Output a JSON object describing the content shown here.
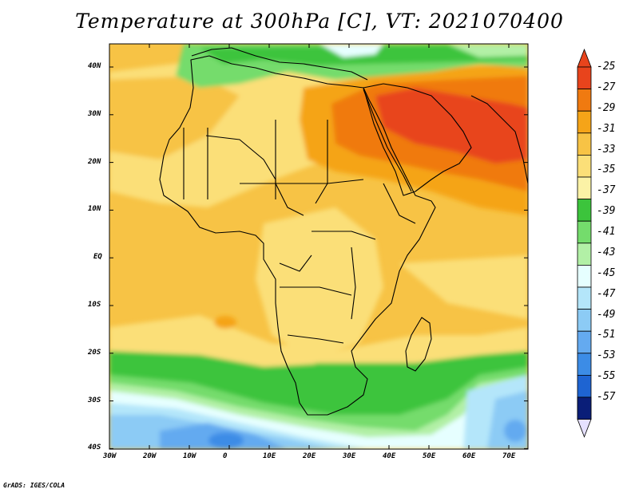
{
  "title": "Temperature at 300hPa [C], VT: 2021070400",
  "credit": "GrADS: IGES/COLA",
  "map": {
    "lon_labels": [
      "30W",
      "20W",
      "10W",
      "0",
      "10E",
      "20E",
      "30E",
      "40E",
      "50E",
      "60E",
      "70E"
    ],
    "lat_labels": [
      "40N",
      "30N",
      "20N",
      "10N",
      "EQ",
      "10S",
      "20S",
      "30S",
      "40S"
    ]
  },
  "colorbar": {
    "labels": [
      "-25",
      "-27",
      "-29",
      "-31",
      "-33",
      "-35",
      "-37",
      "-39",
      "-41",
      "-43",
      "-45",
      "-47",
      "-49",
      "-51",
      "-53",
      "-55",
      "-57"
    ],
    "colors": [
      "#e8441c",
      "#f07a10",
      "#f5a418",
      "#f7c345",
      "#fbdf78",
      "#fbf2a6",
      "#3cc43c",
      "#74dc6c",
      "#b2f0a6",
      "#e6ffff",
      "#b4e6fa",
      "#8ccbf5",
      "#64aaf0",
      "#3c8ce6",
      "#1e64d2",
      "#0a3ca5",
      "#0a1e78"
    ],
    "over_color": "#e8441c",
    "under_color": "#e6e1ff"
  }
}
